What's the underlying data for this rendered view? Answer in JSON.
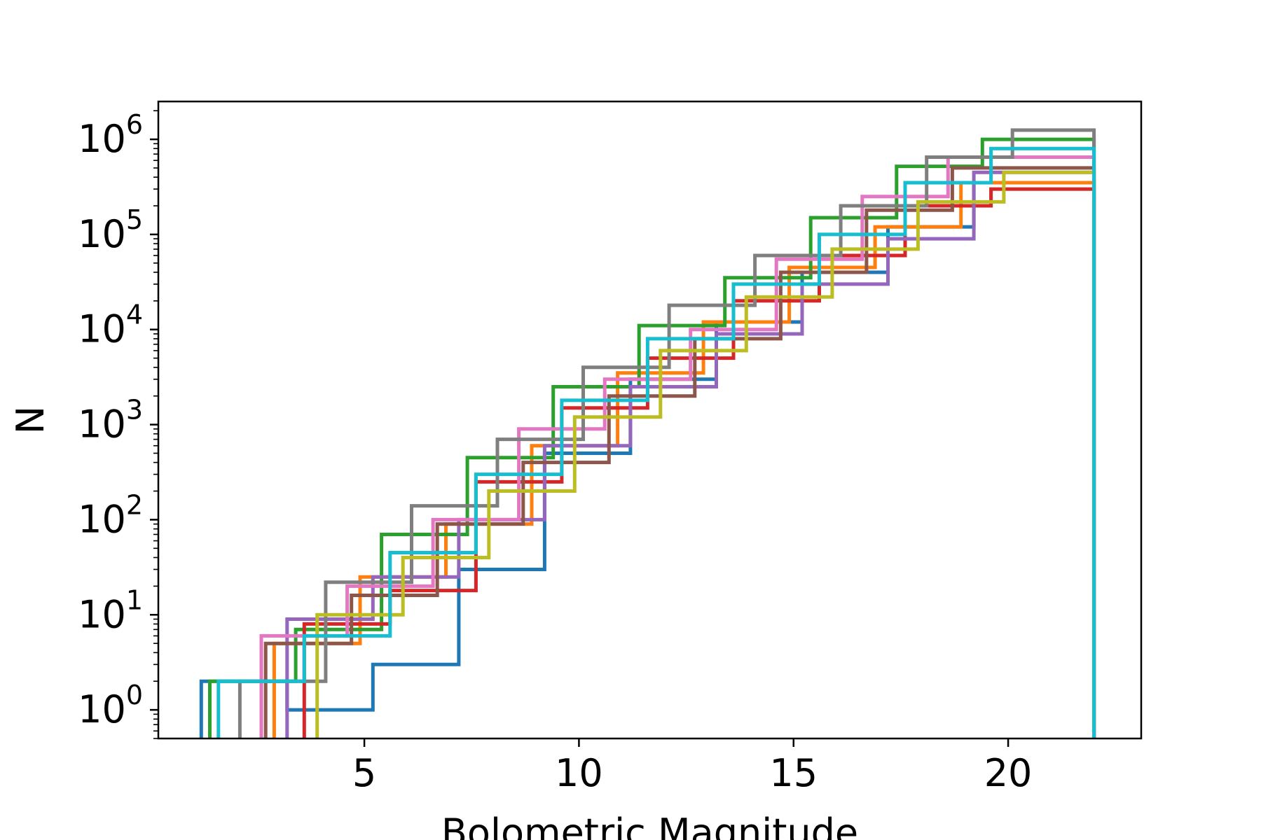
{
  "chart_data": {
    "type": "line",
    "subtype": "step-histogram",
    "title": "",
    "xlabel": "Bolometric Magnitude",
    "ylabel": "N",
    "xlim": [
      0.2,
      23.1
    ],
    "ylim": [
      0.5,
      2500000
    ],
    "yscale": "log",
    "grid": false,
    "legend": "none",
    "x_ticks": [
      {
        "value": 5,
        "label": "5"
      },
      {
        "value": 10,
        "label": "10"
      },
      {
        "value": 15,
        "label": "15"
      },
      {
        "value": 20,
        "label": "20"
      }
    ],
    "y_ticks": [
      {
        "value": 1,
        "base": "10",
        "exp": "0"
      },
      {
        "value": 10,
        "base": "10",
        "exp": "1"
      },
      {
        "value": 100,
        "base": "10",
        "exp": "2"
      },
      {
        "value": 1000,
        "base": "10",
        "exp": "3"
      },
      {
        "value": 10000,
        "base": "10",
        "exp": "4"
      },
      {
        "value": 100000,
        "base": "10",
        "exp": "5"
      },
      {
        "value": 1000000,
        "base": "10",
        "exp": "6"
      }
    ],
    "series": [
      {
        "color": "#1f77b4",
        "edges": [
          1.2,
          3.2,
          5.2,
          7.2,
          9.2,
          11.2,
          13.2,
          15.2,
          17.2,
          19.2,
          22.0
        ],
        "values": [
          2,
          1,
          3,
          30,
          500,
          3000,
          12000,
          40000,
          120000,
          350000
        ]
      },
      {
        "color": "#ff7f0e",
        "edges": [
          2.9,
          4.9,
          6.9,
          8.9,
          10.9,
          12.9,
          14.9,
          16.9,
          18.9,
          22.0
        ],
        "values": [
          5,
          25,
          90,
          600,
          3500,
          12000,
          45000,
          120000,
          350000
        ]
      },
      {
        "color": "#2ca02c",
        "edges": [
          1.4,
          3.4,
          5.4,
          7.4,
          9.4,
          11.4,
          13.4,
          15.4,
          17.4,
          19.4,
          22.0
        ],
        "values": [
          2,
          7,
          70,
          450,
          2500,
          11000,
          35000,
          150000,
          520000,
          1000000
        ]
      },
      {
        "color": "#d62728",
        "edges": [
          3.6,
          5.6,
          7.6,
          9.6,
          11.6,
          13.6,
          15.6,
          17.6,
          19.6,
          22.0
        ],
        "values": [
          8,
          18,
          250,
          1500,
          5000,
          20000,
          60000,
          200000,
          300000
        ]
      },
      {
        "color": "#9467bd",
        "edges": [
          3.2,
          5.2,
          7.2,
          9.2,
          11.2,
          13.2,
          15.2,
          17.2,
          19.2,
          22.0
        ],
        "values": [
          9,
          25,
          100,
          600,
          2500,
          9000,
          30000,
          90000,
          450000
        ]
      },
      {
        "color": "#8c564b",
        "edges": [
          2.7,
          4.7,
          6.7,
          8.7,
          10.7,
          12.7,
          14.7,
          16.7,
          18.7,
          22.0
        ],
        "values": [
          5,
          16,
          90,
          400,
          2000,
          8000,
          40000,
          180000,
          500000
        ]
      },
      {
        "color": "#e377c2",
        "edges": [
          2.6,
          4.6,
          6.6,
          8.6,
          10.6,
          12.6,
          14.6,
          16.6,
          18.6,
          22.0
        ],
        "values": [
          6,
          20,
          100,
          900,
          3000,
          10000,
          55000,
          250000,
          650000
        ]
      },
      {
        "color": "#7f7f7f",
        "edges": [
          2.1,
          4.1,
          6.1,
          8.1,
          10.1,
          12.1,
          14.1,
          16.1,
          18.1,
          20.1,
          22.0
        ],
        "values": [
          2,
          22,
          140,
          700,
          4000,
          18000,
          60000,
          200000,
          650000,
          1250000
        ]
      },
      {
        "color": "#bcbd22",
        "edges": [
          3.9,
          5.9,
          7.9,
          9.9,
          11.9,
          13.9,
          15.9,
          17.9,
          19.9,
          22.0
        ],
        "values": [
          10,
          40,
          200,
          1200,
          6000,
          22000,
          70000,
          220000,
          450000
        ]
      },
      {
        "color": "#17becf",
        "edges": [
          1.6,
          3.6,
          5.6,
          7.6,
          9.6,
          11.6,
          13.6,
          15.6,
          17.6,
          19.6,
          22.0
        ],
        "values": [
          2,
          6,
          45,
          300,
          1800,
          8000,
          30000,
          100000,
          350000,
          800000
        ]
      }
    ]
  }
}
